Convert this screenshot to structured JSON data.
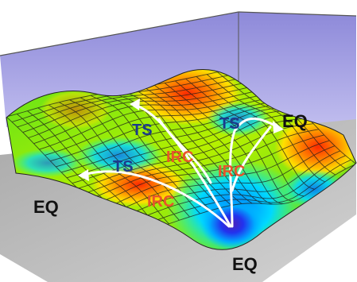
{
  "figure": {
    "labels": {
      "eq_top_right": "EQ",
      "eq_left": "EQ",
      "eq_bottom": "EQ",
      "ts_upper_left": "TS",
      "ts_upper_right": "TS",
      "ts_left": "TS",
      "irc_center": "IRC",
      "irc_right": "IRC",
      "irc_lower": "IRC"
    },
    "colors": {
      "eq": "#111111",
      "ts": "#1a3a8c",
      "irc": "#e8542a",
      "path": "#ffffff",
      "back_wall": "#a9a6e6",
      "floor": "#bdbdbd"
    }
  }
}
